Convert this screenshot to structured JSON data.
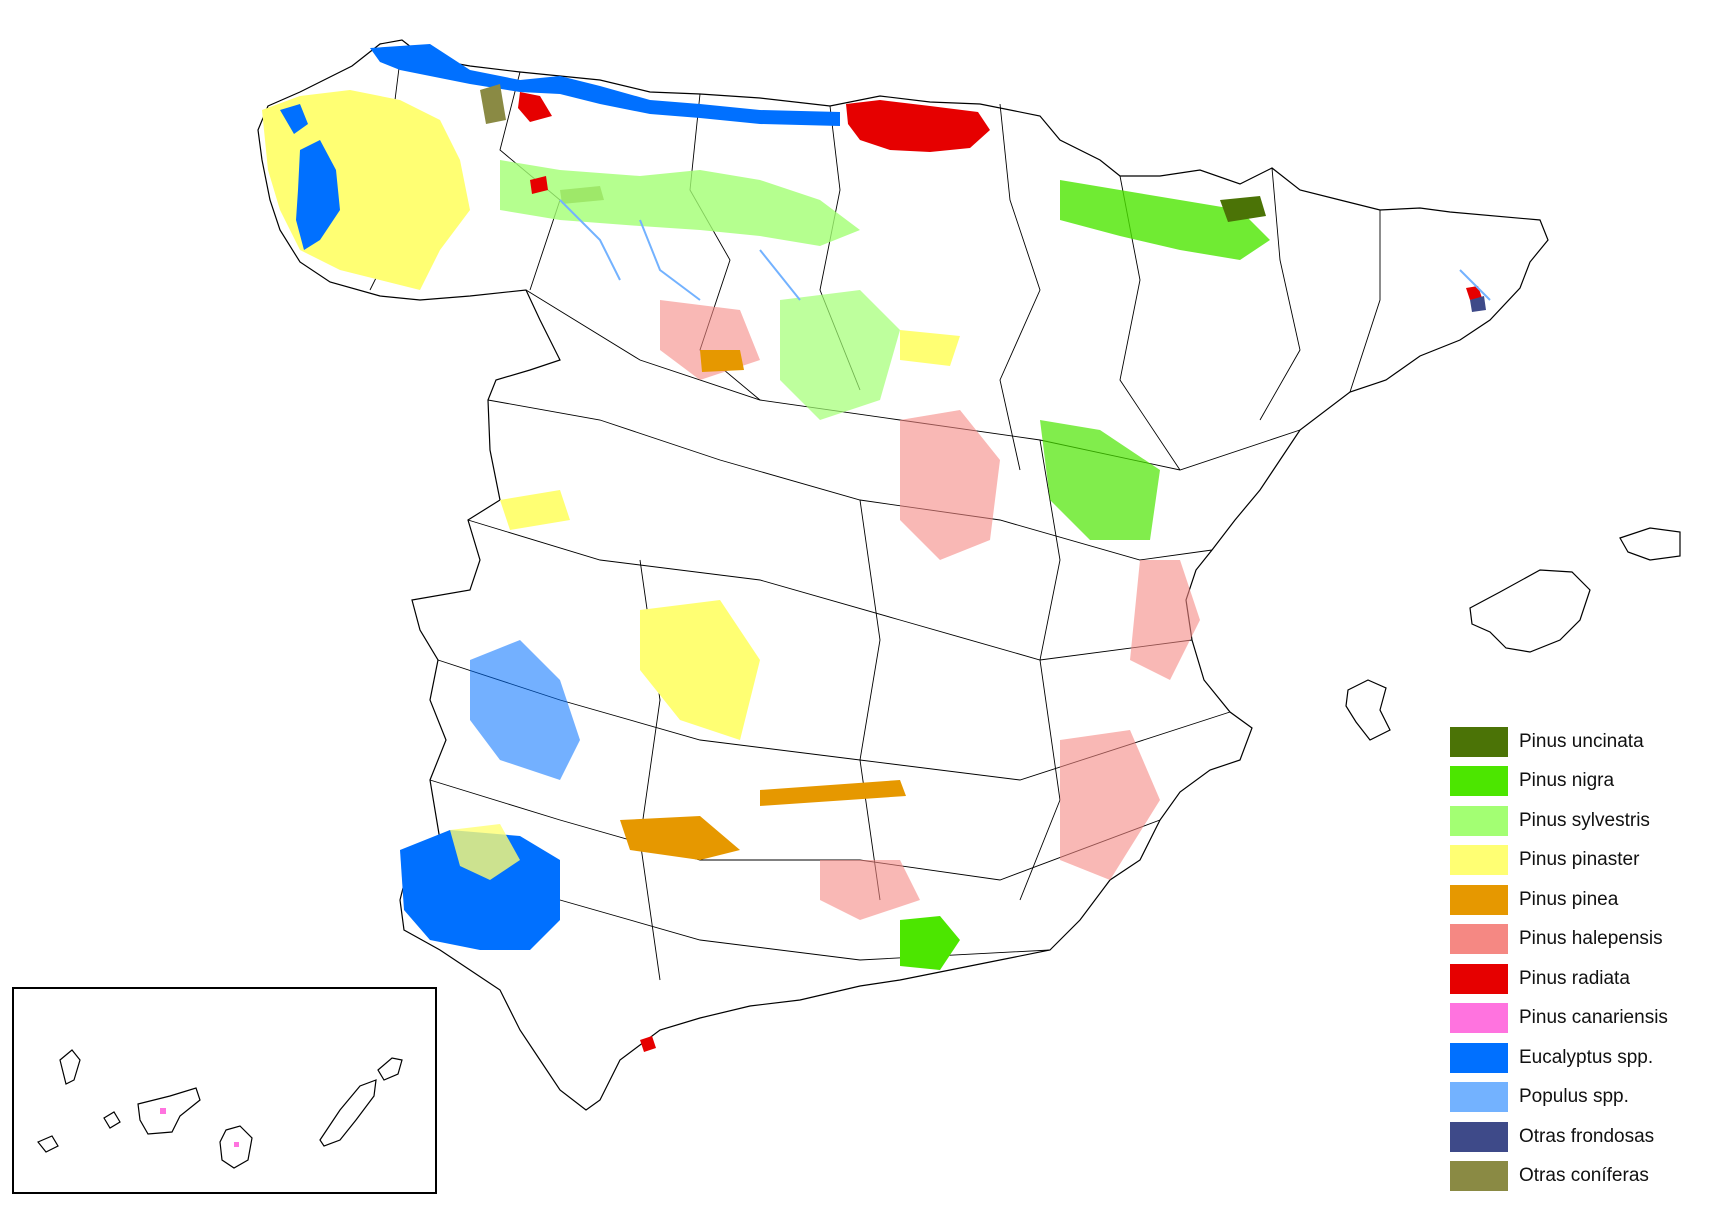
{
  "legend": {
    "items": [
      {
        "key": "uncinata",
        "label": "Pinus uncinata",
        "color": "#4b7306"
      },
      {
        "key": "nigra",
        "label": "Pinus nigra",
        "color": "#4ce600"
      },
      {
        "key": "sylvestris",
        "label": "Pinus sylvestris",
        "color": "#a3ff73"
      },
      {
        "key": "pinaster",
        "label": "Pinus pinaster",
        "color": "#ffff73"
      },
      {
        "key": "pinea",
        "label": "Pinus pinea",
        "color": "#e69800"
      },
      {
        "key": "halepensis",
        "label": "Pinus halepensis",
        "color": "#f58883"
      },
      {
        "key": "radiata",
        "label": "Pinus radiata",
        "color": "#e60000"
      },
      {
        "key": "canariensis",
        "label": "Pinus canariensis",
        "color": "#ff73df"
      },
      {
        "key": "eucalyptus",
        "label": "Eucalyptus spp.",
        "color": "#0070ff"
      },
      {
        "key": "populus",
        "label": "Populus spp.",
        "color": "#73b2ff"
      },
      {
        "key": "frondosas",
        "label": "Otras frondosas",
        "color": "#3e4a89"
      },
      {
        "key": "coniferas",
        "label": "Otras coníferas",
        "color": "#8a8a44"
      }
    ]
  }
}
